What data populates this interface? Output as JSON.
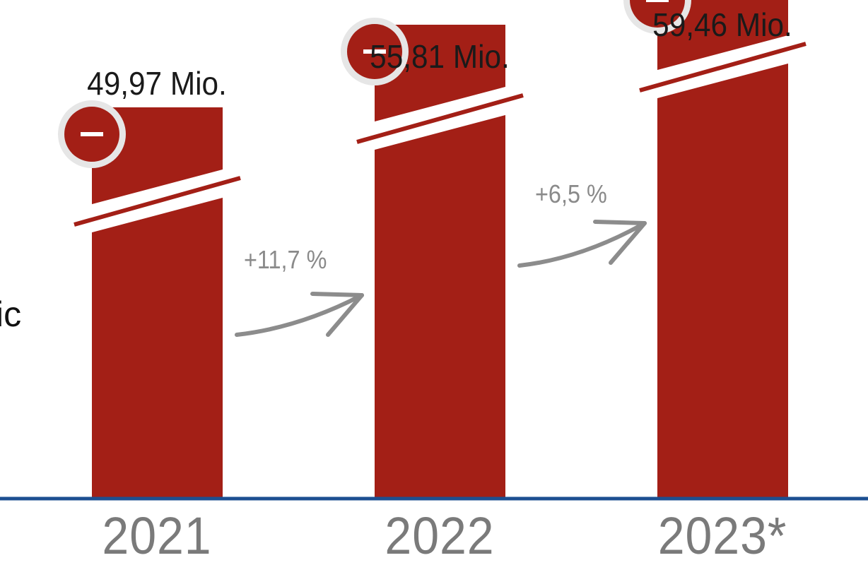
{
  "left_cut_text": "ic",
  "chart_data": {
    "type": "bar",
    "categories": [
      "2021",
      "2022",
      "2023*"
    ],
    "values": [
      49.97,
      55.81,
      59.46
    ],
    "value_labels": [
      "49,97 Mio.",
      "55,81 Mio.",
      "59,46 Mio."
    ],
    "growth": [
      {
        "from": "2021",
        "to": "2022",
        "label": "+11,7 %"
      },
      {
        "from": "2022",
        "to": "2023*",
        "label": "+6,5 %"
      }
    ],
    "axis_break": true,
    "grid": false,
    "legend": "none",
    "colors": {
      "bar": "#a31f16",
      "baseline": "#1c4f91",
      "arrow": "#8c8c8c",
      "collapse_button": "#a31f16"
    }
  }
}
